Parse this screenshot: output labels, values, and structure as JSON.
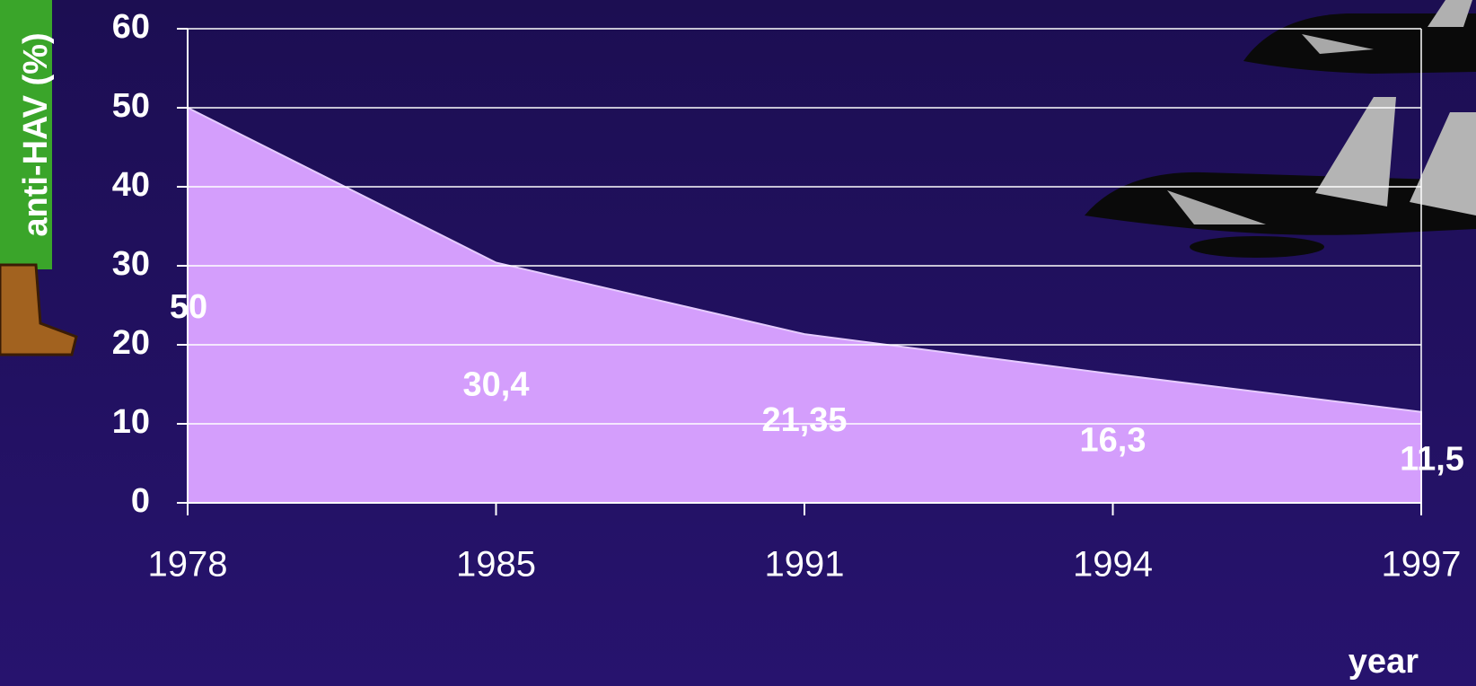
{
  "chart_data": {
    "type": "area",
    "categories": [
      "1978",
      "1985",
      "1991",
      "1994",
      "1997"
    ],
    "values": [
      50,
      30.4,
      21.35,
      16.3,
      11.5
    ],
    "value_labels": [
      "50",
      "30,4",
      "21,35",
      "16,3",
      "11,5"
    ],
    "color": "#d49efc",
    "ylim": [
      0,
      60
    ],
    "yticks": [
      0,
      10,
      20,
      30,
      40,
      50,
      60
    ],
    "grid": true,
    "ylabel": "anti-HAV (%)",
    "xlabel": "year"
  }
}
